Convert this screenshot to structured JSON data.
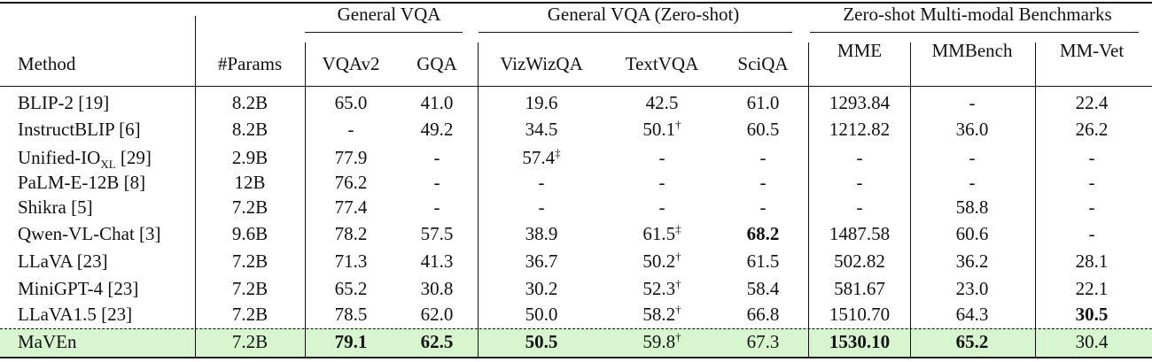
{
  "header": {
    "groups": [
      "General VQA",
      "General VQA (Zero-shot)",
      "Zero-shot Multi-modal Benchmarks"
    ],
    "columns": [
      "Method",
      "#Params",
      "VQAv2",
      "GQA",
      "VizWizQA",
      "TextVQA",
      "SciQA",
      "MME",
      "MMBench",
      "MM-Vet"
    ]
  },
  "rows": [
    {
      "method": "BLIP-2 [19]",
      "params": "8.2B",
      "vals": [
        "65.0",
        "41.0",
        "19.6",
        "42.5",
        "61.0",
        "1293.84",
        "-",
        "22.4"
      ]
    },
    {
      "method": "InstructBLIP [6]",
      "params": "8.2B",
      "vals": [
        "-",
        "49.2",
        "34.5",
        "50.1",
        "60.5",
        "1212.82",
        "36.0",
        "26.2"
      ],
      "marks": {
        "3": "†"
      }
    },
    {
      "method": "Unified-IO",
      "method_sub": "XL",
      "method_tail": " [29]",
      "params": "2.9B",
      "vals": [
        "77.9",
        "-",
        "57.4",
        "-",
        "-",
        "-",
        "-",
        "-"
      ],
      "marks": {
        "2": "‡"
      }
    },
    {
      "method": "PaLM-E-12B [8]",
      "params": "12B",
      "vals": [
        "76.2",
        "-",
        "-",
        "-",
        "-",
        "-",
        "-",
        "-"
      ]
    },
    {
      "method": "Shikra [5]",
      "params": "7.2B",
      "vals": [
        "77.4",
        "-",
        "-",
        "-",
        "-",
        "-",
        "58.8",
        "-"
      ]
    },
    {
      "method": "Qwen-VL-Chat [3]",
      "params": "9.6B",
      "vals": [
        "78.2",
        "57.5",
        "38.9",
        "61.5",
        "68.2",
        "1487.58",
        "60.6",
        "-"
      ],
      "marks": {
        "3": "‡"
      },
      "bold": [
        4
      ]
    },
    {
      "method": "LLaVA [23]",
      "params": "7.2B",
      "vals": [
        "71.3",
        "41.3",
        "36.7",
        "50.2",
        "61.5",
        "502.82",
        "36.2",
        "28.1"
      ],
      "marks": {
        "3": "†"
      }
    },
    {
      "method": "MiniGPT-4 [23]",
      "params": "7.2B",
      "vals": [
        "65.2",
        "30.8",
        "30.2",
        "52.3",
        "58.4",
        "581.67",
        "23.0",
        "22.1"
      ],
      "marks": {
        "3": "†"
      }
    },
    {
      "method": "LLaVA1.5 [23]",
      "params": "7.2B",
      "vals": [
        "78.5",
        "62.0",
        "50.0",
        "58.2",
        "66.8",
        "1510.70",
        "64.3",
        "30.5"
      ],
      "marks": {
        "3": "†"
      },
      "bold": [
        7
      ]
    },
    {
      "method": "MaVEn",
      "params": "7.2B",
      "vals": [
        "79.1",
        "62.5",
        "50.5",
        "59.8",
        "67.3",
        "1530.10",
        "65.2",
        "30.4"
      ],
      "marks": {
        "3": "†"
      },
      "bold": [
        0,
        1,
        2,
        5,
        6
      ],
      "highlight": true
    }
  ],
  "highlight_color": "#d7f6cf"
}
